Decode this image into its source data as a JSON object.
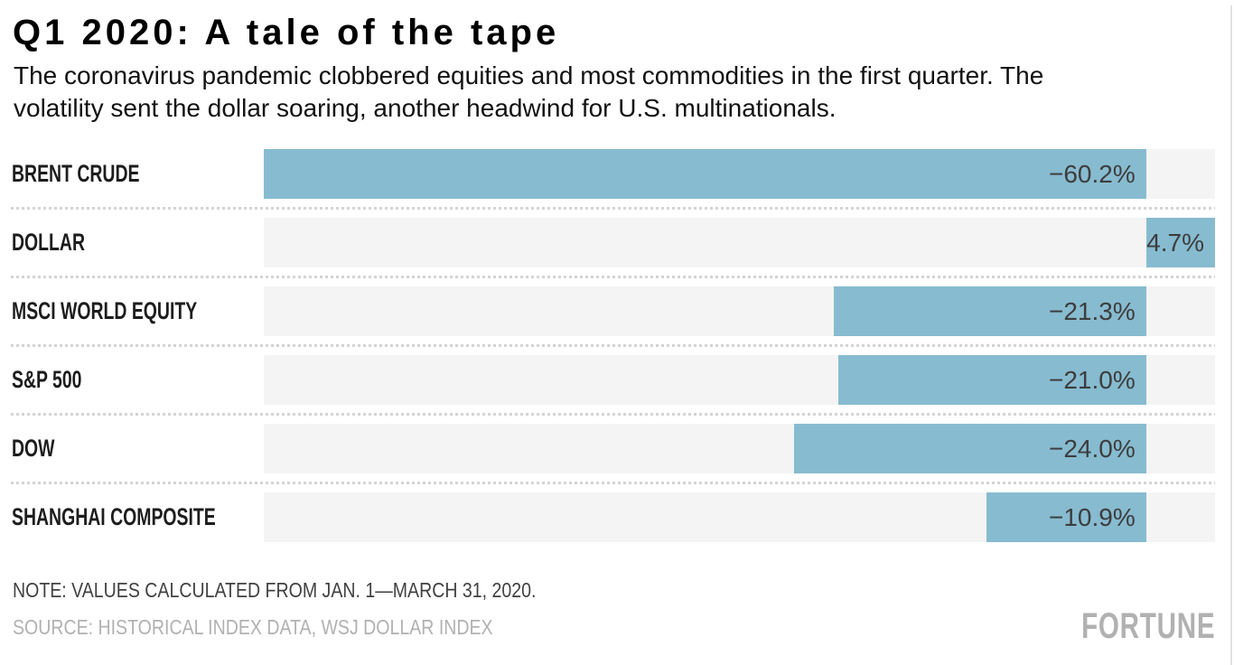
{
  "header": {
    "title": "Q1 2020: A tale of the tape",
    "subtitle_line1": "The coronavirus pandemic clobbered equities and most commodities in the first quarter. The",
    "subtitle_line2": "volatility sent the dollar soaring, another headwind for U.S. multinationals."
  },
  "chart_data": {
    "type": "bar",
    "orientation": "horizontal",
    "title": "Q1 2020: A tale of the tape",
    "categories": [
      "BRENT CRUDE",
      "DOLLAR",
      "MSCI WORLD EQUITY",
      "S&P 500",
      "DOW",
      "SHANGHAI COMPOSITE"
    ],
    "values": [
      -60.2,
      4.7,
      -21.3,
      -21.0,
      -24.0,
      -10.9
    ],
    "value_labels": [
      "−60.2%",
      "4.7%",
      "−21.3%",
      "−21.0%",
      "−24.0%",
      "−10.9%"
    ],
    "unit": "%",
    "xlim": [
      -60.2,
      4.7
    ],
    "grid": false,
    "legend": "none",
    "bar_color": "#87bbd0",
    "track_color": "#f4f4f4"
  },
  "footer": {
    "note": "NOTE: VALUES CALCULATED FROM JAN. 1—MARCH 31, 2020.",
    "source": "SOURCE: HISTORICAL INDEX DATA, WSJ DOLLAR INDEX",
    "logo": "FORTUNE"
  }
}
